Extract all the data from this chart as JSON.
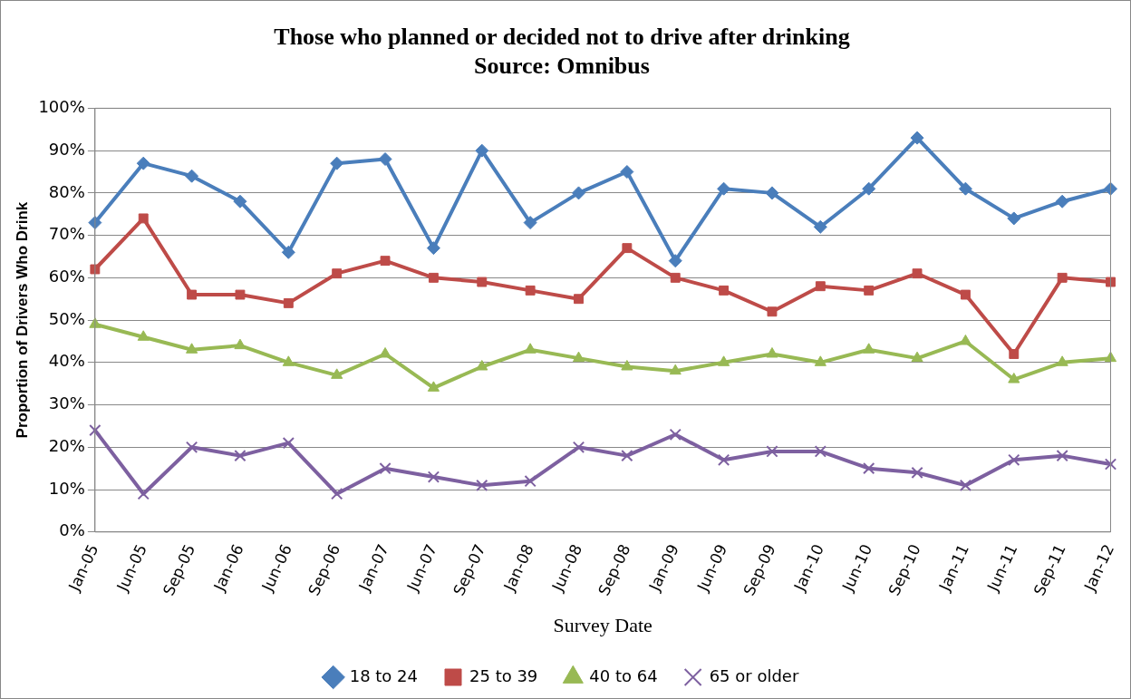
{
  "chart_data": {
    "type": "line",
    "title": "Those who planned or decided not to drive after drinking",
    "subtitle": "Source: Omnibus",
    "xlabel": "Survey Date",
    "ylabel": "Proportion of Drivers Who Drink",
    "categories": [
      "Jan-05",
      "Jun-05",
      "Sep-05",
      "Jan-06",
      "Jun-06",
      "Sep-06",
      "Jan-07",
      "Jun-07",
      "Sep-07",
      "Jan-08",
      "Jun-08",
      "Sep-08",
      "Jan-09",
      "Jun-09",
      "Sep-09",
      "Jan-10",
      "Jun-10",
      "Sep-10",
      "Jan-11",
      "Jun-11",
      "Sep-11",
      "Jan-12"
    ],
    "series": [
      {
        "name": "18 to 24",
        "color": "#4a7ebb",
        "marker": "diamond",
        "values": [
          73,
          87,
          84,
          78,
          66,
          87,
          88,
          67,
          90,
          73,
          80,
          85,
          64,
          81,
          80,
          72,
          81,
          93,
          81,
          74,
          78,
          81
        ]
      },
      {
        "name": "25 to 39",
        "color": "#be4b48",
        "marker": "square",
        "values": [
          62,
          74,
          56,
          56,
          54,
          61,
          64,
          60,
          59,
          57,
          55,
          67,
          60,
          57,
          52,
          58,
          57,
          61,
          56,
          42,
          60,
          59
        ]
      },
      {
        "name": "40 to 64",
        "color": "#98b954",
        "marker": "triangle",
        "values": [
          49,
          46,
          43,
          44,
          40,
          37,
          42,
          34,
          39,
          43,
          41,
          39,
          38,
          40,
          42,
          40,
          43,
          41,
          45,
          36,
          40,
          41
        ]
      },
      {
        "name": "65 or older",
        "color": "#7d60a0",
        "marker": "cross",
        "values": [
          24,
          9,
          20,
          18,
          21,
          9,
          15,
          13,
          11,
          12,
          20,
          18,
          23,
          17,
          19,
          19,
          15,
          14,
          11,
          17,
          18,
          16
        ]
      }
    ],
    "ylim": [
      0,
      100
    ],
    "yticks": [
      {
        "value": 0,
        "label": "0%"
      },
      {
        "value": 10,
        "label": "10%"
      },
      {
        "value": 20,
        "label": "20%"
      },
      {
        "value": 30,
        "label": "30%"
      },
      {
        "value": 40,
        "label": "40%"
      },
      {
        "value": 50,
        "label": "50%"
      },
      {
        "value": 60,
        "label": "60%"
      },
      {
        "value": 70,
        "label": "70%"
      },
      {
        "value": 80,
        "label": "80%"
      },
      {
        "value": 90,
        "label": "90%"
      },
      {
        "value": 100,
        "label": "100%"
      }
    ],
    "grid": "y",
    "legend": "bottom",
    "line_style": "solid"
  }
}
